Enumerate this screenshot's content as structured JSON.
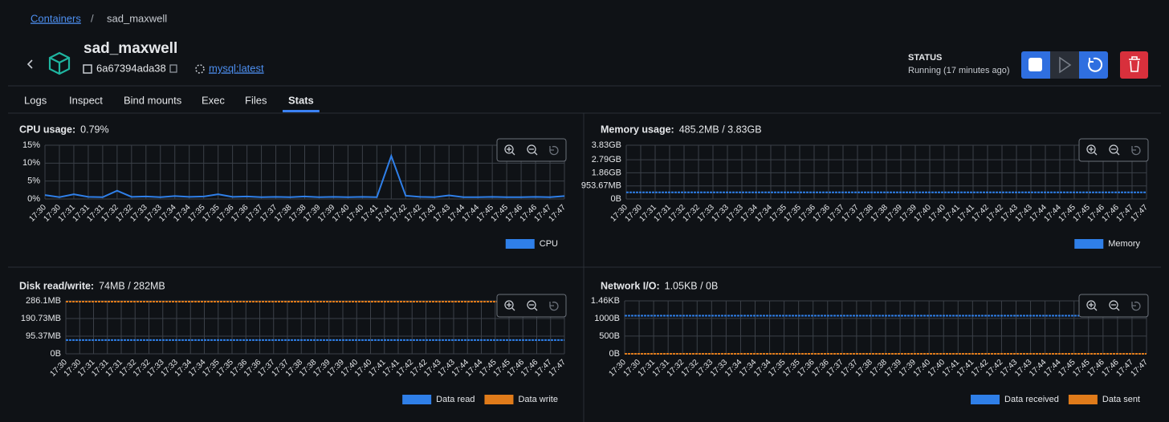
{
  "breadcrumb": {
    "link": "Containers",
    "separator": "/",
    "current": "sad_maxwell"
  },
  "header": {
    "name": "sad_maxwell",
    "id": "6a67394ada38",
    "image": "mysql:latest",
    "status_label": "STATUS",
    "status": "Running (17 minutes ago)"
  },
  "tabs": {
    "items": [
      "Logs",
      "Inspect",
      "Bind mounts",
      "Exec",
      "Files",
      "Stats"
    ],
    "active": 5
  },
  "chart_data": [
    {
      "type": "line",
      "title": "CPU usage:",
      "current": "0.79%",
      "categories": [
        "17:30",
        "17:30",
        "17:31",
        "17:31",
        "17:31",
        "17:32",
        "17:32",
        "17:33",
        "17:33",
        "17:34",
        "17:34",
        "17:35",
        "17:35",
        "17:36",
        "17:36",
        "17:37",
        "17:37",
        "17:38",
        "17:38",
        "17:39",
        "17:39",
        "17:40",
        "17:40",
        "17:41",
        "17:41",
        "17:42",
        "17:42",
        "17:43",
        "17:43",
        "17:44",
        "17:44",
        "17:45",
        "17:45",
        "17:46",
        "17:46",
        "17:47",
        "17:47"
      ],
      "series": [
        {
          "name": "CPU",
          "color": "#2f7fe8",
          "values": [
            1.1,
            0.5,
            1.3,
            0.6,
            0.5,
            2.3,
            0.6,
            0.7,
            0.5,
            0.8,
            0.6,
            0.7,
            1.3,
            0.6,
            0.7,
            0.5,
            0.6,
            0.5,
            0.7,
            0.5,
            0.6,
            0.5,
            0.6,
            0.5,
            12,
            0.9,
            0.6,
            0.5,
            1.0,
            0.5,
            0.5,
            0.6,
            0.5,
            0.5,
            0.6,
            0.5,
            0.8
          ]
        }
      ],
      "ylim": [
        0,
        15
      ],
      "yticks": [
        {
          "value": 0,
          "label": "0%"
        },
        {
          "value": 5,
          "label": "5%"
        },
        {
          "value": 10,
          "label": "10%"
        },
        {
          "value": 15,
          "label": "15%"
        }
      ],
      "grid": true
    },
    {
      "type": "line",
      "title": "Memory usage:",
      "current": "485.2MB / 3.83GB",
      "categories": [
        "17:30",
        "17:30",
        "17:31",
        "17:31",
        "17:32",
        "17:32",
        "17:33",
        "17:33",
        "17:33",
        "17:34",
        "17:34",
        "17:35",
        "17:35",
        "17:36",
        "17:36",
        "17:37",
        "17:37",
        "17:38",
        "17:38",
        "17:39",
        "17:39",
        "17:40",
        "17:40",
        "17:41",
        "17:41",
        "17:42",
        "17:42",
        "17:43",
        "17:43",
        "17:44",
        "17:44",
        "17:45",
        "17:45",
        "17:46",
        "17:46",
        "17:47",
        "17:47"
      ],
      "series": [
        {
          "name": "Memory",
          "color": "#2f7fe8",
          "values": [
            485.2,
            485.2,
            485.2,
            485.2,
            485.2,
            485.2,
            485.2,
            485.2,
            485.2,
            485.2,
            485.2,
            485.2,
            485.2,
            485.2,
            485.2,
            485.2,
            485.2,
            485.2,
            485.2,
            485.2,
            485.2,
            485.2,
            485.2,
            485.2,
            485.2,
            485.2,
            485.2,
            485.2,
            485.2,
            485.2,
            485.2,
            485.2,
            485.2,
            485.2,
            485.2,
            485.2,
            485.2
          ]
        }
      ],
      "ylim": [
        0,
        3921.92
      ],
      "yticks": [
        {
          "value": 0,
          "label": "0B"
        },
        {
          "value": 953.67,
          "label": "953.67MB"
        },
        {
          "value": 1907.35,
          "label": "1.86GB"
        },
        {
          "value": 2861.02,
          "label": "2.79GB"
        },
        {
          "value": 3921.92,
          "label": "3.83GB"
        }
      ],
      "grid": true
    },
    {
      "type": "line",
      "title": "Disk read/write:",
      "current": "74MB / 282MB",
      "categories": [
        "17:30",
        "17:30",
        "17:31",
        "17:31",
        "17:31",
        "17:32",
        "17:32",
        "17:33",
        "17:33",
        "17:34",
        "17:34",
        "17:35",
        "17:35",
        "17:36",
        "17:36",
        "17:37",
        "17:37",
        "17:38",
        "17:38",
        "17:39",
        "17:39",
        "17:40",
        "17:40",
        "17:41",
        "17:41",
        "17:42",
        "17:42",
        "17:43",
        "17:43",
        "17:44",
        "17:44",
        "17:45",
        "17:45",
        "17:46",
        "17:46",
        "17:47",
        "17:47"
      ],
      "series": [
        {
          "name": "Data read",
          "color": "#2f7fe8",
          "values": [
            74,
            74,
            74,
            74,
            74,
            74,
            74,
            74,
            74,
            74,
            74,
            74,
            74,
            74,
            74,
            74,
            74,
            74,
            74,
            74,
            74,
            74,
            74,
            74,
            74,
            74,
            74,
            74,
            74,
            74,
            74,
            74,
            74,
            74,
            74,
            74,
            74
          ]
        },
        {
          "name": "Data write",
          "color": "#e07b1a",
          "values": [
            282,
            282,
            282,
            282,
            282,
            282,
            282,
            282,
            282,
            282,
            282,
            282,
            282,
            282,
            282,
            282,
            282,
            282,
            282,
            282,
            282,
            282,
            282,
            282,
            282,
            282,
            282,
            282,
            282,
            282,
            282,
            282,
            282,
            282,
            282,
            282,
            282
          ]
        }
      ],
      "ylim": [
        0,
        286.1
      ],
      "yticks": [
        {
          "value": 0,
          "label": "0B"
        },
        {
          "value": 95.37,
          "label": "95.37MB"
        },
        {
          "value": 190.73,
          "label": "190.73MB"
        },
        {
          "value": 286.1,
          "label": "286.1MB"
        }
      ],
      "grid": true
    },
    {
      "type": "line",
      "title": "Network I/O:",
      "current": "1.05KB / 0B",
      "categories": [
        "17:30",
        "17:30",
        "17:31",
        "17:31",
        "17:32",
        "17:32",
        "17:33",
        "17:33",
        "17:34",
        "17:34",
        "17:34",
        "17:35",
        "17:35",
        "17:36",
        "17:36",
        "17:37",
        "17:37",
        "17:38",
        "17:38",
        "17:39",
        "17:39",
        "17:40",
        "17:40",
        "17:41",
        "17:41",
        "17:42",
        "17:42",
        "17:43",
        "17:43",
        "17:44",
        "17:44",
        "17:45",
        "17:45",
        "17:46",
        "17:46",
        "17:47",
        "17:47"
      ],
      "series": [
        {
          "name": "Data received",
          "color": "#2f7fe8",
          "values": [
            1075.2,
            1075.2,
            1075.2,
            1075.2,
            1075.2,
            1075.2,
            1075.2,
            1075.2,
            1075.2,
            1075.2,
            1075.2,
            1075.2,
            1075.2,
            1075.2,
            1075.2,
            1075.2,
            1075.2,
            1075.2,
            1075.2,
            1075.2,
            1075.2,
            1075.2,
            1075.2,
            1075.2,
            1075.2,
            1075.2,
            1075.2,
            1075.2,
            1075.2,
            1075.2,
            1075.2,
            1075.2,
            1075.2,
            1075.2,
            1075.2,
            1075.2,
            1075.2
          ]
        },
        {
          "name": "Data sent",
          "color": "#e07b1a",
          "values": [
            0,
            0,
            0,
            0,
            0,
            0,
            0,
            0,
            0,
            0,
            0,
            0,
            0,
            0,
            0,
            0,
            0,
            0,
            0,
            0,
            0,
            0,
            0,
            0,
            0,
            0,
            0,
            0,
            0,
            0,
            0,
            0,
            0,
            0,
            0,
            0,
            0
          ]
        }
      ],
      "ylim": [
        0,
        1495.04
      ],
      "yticks": [
        {
          "value": 0,
          "label": "0B"
        },
        {
          "value": 500,
          "label": "500B"
        },
        {
          "value": 1000,
          "label": "1000B"
        },
        {
          "value": 1495.04,
          "label": "1.46KB"
        }
      ],
      "grid": true
    }
  ]
}
